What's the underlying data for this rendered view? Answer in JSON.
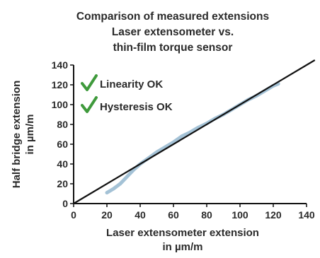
{
  "chart_data": {
    "type": "line",
    "title_lines": [
      "Comparison of measured extensions",
      "Laser extensometer vs.",
      "thin-film torque sensor"
    ],
    "xlabel_lines": [
      "Laser extensometer extension",
      "in µm/m"
    ],
    "ylabel_lines": [
      "Half bridge extension",
      "in µm/m"
    ],
    "xlim": [
      0,
      140
    ],
    "ylim": [
      0,
      140
    ],
    "x_ticks": [
      0,
      20,
      40,
      60,
      80,
      100,
      120,
      140
    ],
    "y_ticks": [
      0,
      20,
      40,
      60,
      80,
      100,
      120,
      140
    ],
    "x_tick_labels": [
      "0",
      "20",
      "40",
      "60",
      "80",
      "100",
      "120",
      "140"
    ],
    "y_tick_labels": [
      "0",
      "20",
      "40",
      "60",
      "80",
      "100",
      "120",
      "140"
    ],
    "grid": false,
    "annotations": [
      {
        "text": "Linearity OK"
      },
      {
        "text": "Hysteresis OK"
      }
    ],
    "series": [
      {
        "style": "reference-line",
        "color": "#111111",
        "x": [
          0,
          145
        ],
        "y": [
          0,
          145
        ]
      },
      {
        "style": "measured-band",
        "color": "#9fbfd4",
        "x": [
          20,
          24,
          28,
          32,
          36,
          40,
          45,
          50,
          55,
          60,
          65,
          70,
          75,
          80,
          85,
          90,
          95,
          100,
          105,
          110,
          115,
          120,
          123
        ],
        "y": [
          11,
          15,
          20,
          27,
          34,
          40,
          46,
          52,
          57,
          62,
          68,
          72,
          77,
          81,
          86,
          90,
          95,
          100,
          105,
          109,
          114,
          119,
          121
        ]
      }
    ],
    "check_color": "#3f9a3c"
  }
}
